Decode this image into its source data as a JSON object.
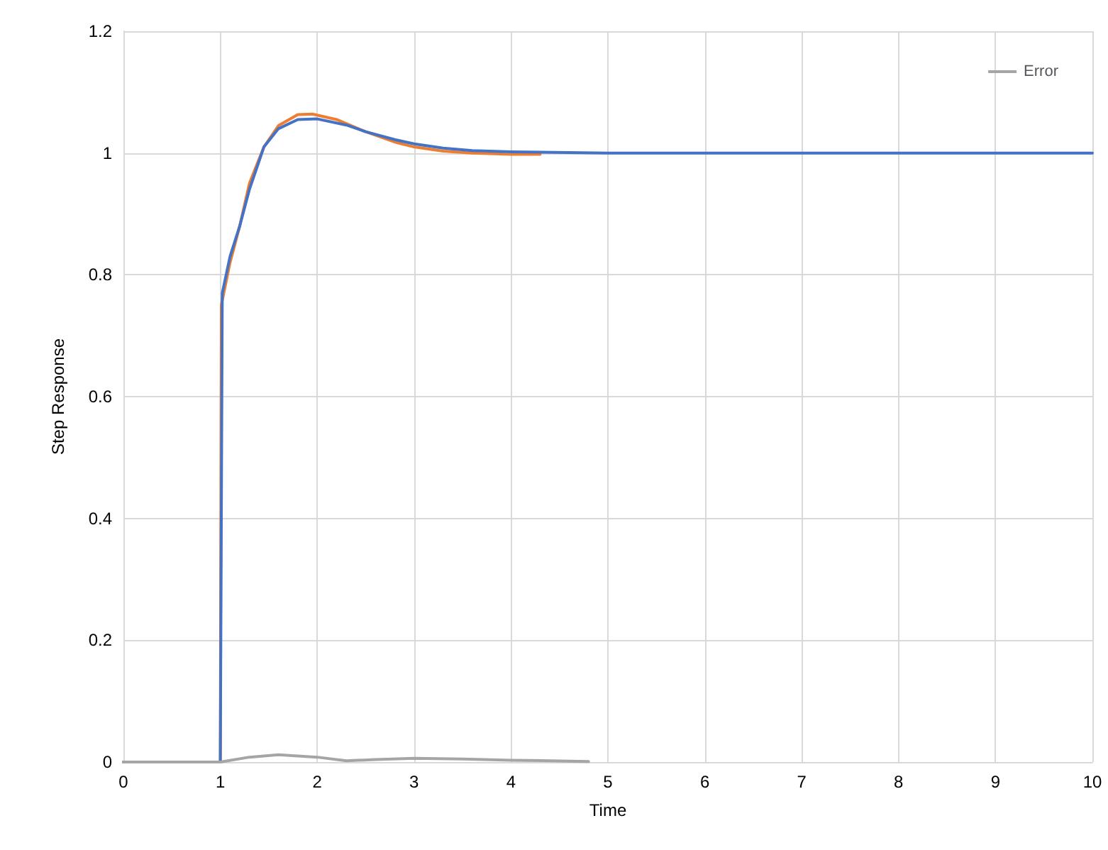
{
  "chart_data": {
    "type": "line",
    "xlabel": "Time",
    "ylabel": "Step Response",
    "xlim": [
      0,
      10
    ],
    "xticks": [
      0,
      1,
      2,
      3,
      4,
      5,
      6,
      7,
      8,
      9,
      10
    ],
    "ylim": [
      0,
      1.2
    ],
    "yticks": [
      0,
      0.2,
      0.4,
      0.6,
      0.8,
      1,
      1.2
    ],
    "grid": true,
    "legend": "top right",
    "marker": "none",
    "line_style": "solid",
    "series": [
      {
        "color": "#ed7d31",
        "x": [
          0,
          1,
          1.01,
          1.1,
          1.2,
          1.3,
          1.45,
          1.6,
          1.8,
          1.95,
          2.2,
          2.5,
          2.8,
          3,
          3.3,
          3.6,
          4,
          4.3
        ],
        "values": [
          0,
          0,
          0.75,
          0.82,
          0.88,
          0.95,
          1.01,
          1.045,
          1.063,
          1.064,
          1.055,
          1.035,
          1.018,
          1.01,
          1.003,
          1,
          0.998,
          0.998
        ]
      },
      {
        "color": "#4472c4",
        "x": [
          0,
          1,
          1.02,
          1.1,
          1.2,
          1.3,
          1.45,
          1.6,
          1.8,
          2,
          2.3,
          2.5,
          2.8,
          3,
          3.3,
          3.6,
          4,
          5,
          10
        ],
        "values": [
          0,
          0,
          0.77,
          0.83,
          0.88,
          0.94,
          1.01,
          1.04,
          1.055,
          1.056,
          1.046,
          1.035,
          1.022,
          1.015,
          1.008,
          1.004,
          1.002,
          1,
          1
        ]
      },
      {
        "name": "Error",
        "color": "#a5a5a5",
        "x": [
          0,
          1,
          1.3,
          1.6,
          2,
          2.3,
          2.6,
          3,
          3.5,
          4,
          4.8
        ],
        "values": [
          0,
          0,
          0.008,
          0.012,
          0.008,
          0.002,
          0.004,
          0.006,
          0.005,
          0.003,
          0.001
        ]
      }
    ]
  }
}
